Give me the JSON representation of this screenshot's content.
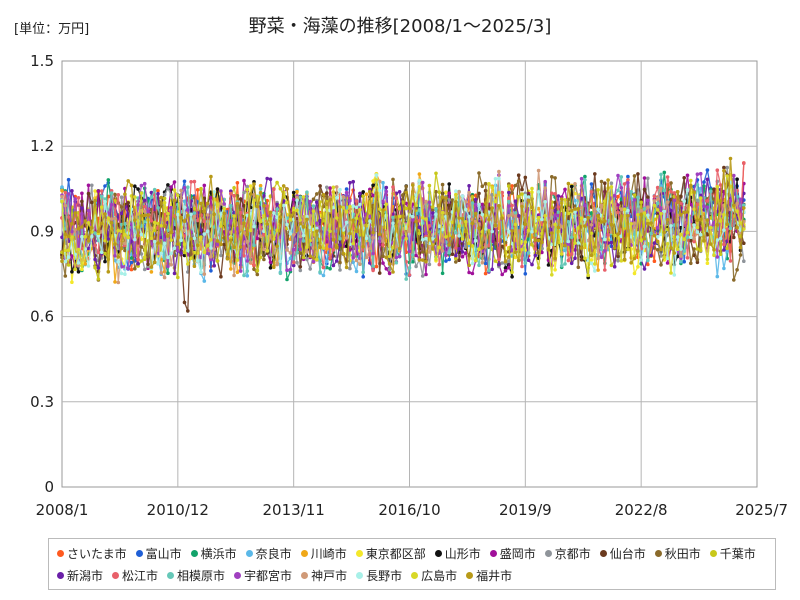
{
  "page": {
    "unit_label": "[単位：万円]",
    "title": "野菜・海藻の推移[2008/1～2025/3]"
  },
  "chart_data": {
    "type": "line",
    "title": "野菜・海藻の推移[2008/1～2025/3]",
    "unit": "[単位：万円]",
    "x_range": [
      "2008/1",
      "2025/7"
    ],
    "x_ticks": [
      "2008/1",
      "2010/12",
      "2013/11",
      "2016/10",
      "2019/9",
      "2022/8",
      "2025/7"
    ],
    "y_ticks": [
      "0",
      "0.3",
      "0.6",
      "0.9",
      "1.2",
      "1.5"
    ],
    "ylim": [
      0,
      1.5
    ],
    "grid": true,
    "legend_position": "bottom",
    "series": [
      {
        "name": "さいたま市",
        "color": "#ff5a1f"
      },
      {
        "name": "富山市",
        "color": "#1f5fd6"
      },
      {
        "name": "横浜市",
        "color": "#12a36b"
      },
      {
        "name": "奈良市",
        "color": "#5bb8e8"
      },
      {
        "name": "川崎市",
        "color": "#f0a818"
      },
      {
        "name": "東京都区部",
        "color": "#f4e82a"
      },
      {
        "name": "山形市",
        "color": "#111111"
      },
      {
        "name": "盛岡市",
        "color": "#a0109a"
      },
      {
        "name": "京都市",
        "color": "#8f949a"
      },
      {
        "name": "仙台市",
        "color": "#6b3a1e"
      },
      {
        "name": "秋田市",
        "color": "#8a6a2a"
      },
      {
        "name": "千葉市",
        "color": "#c8c81a"
      },
      {
        "name": "新潟市",
        "color": "#6a1fa8"
      },
      {
        "name": "松江市",
        "color": "#e8606a"
      },
      {
        "name": "相模原市",
        "color": "#66c8b8"
      },
      {
        "name": "宇都宮市",
        "color": "#a040c0"
      },
      {
        "name": "神戸市",
        "color": "#d09a78"
      },
      {
        "name": "長野市",
        "color": "#a8f0e8"
      },
      {
        "name": "広島市",
        "color": "#d8d828"
      },
      {
        "name": "福井市",
        "color": "#b89a18"
      }
    ]
  }
}
